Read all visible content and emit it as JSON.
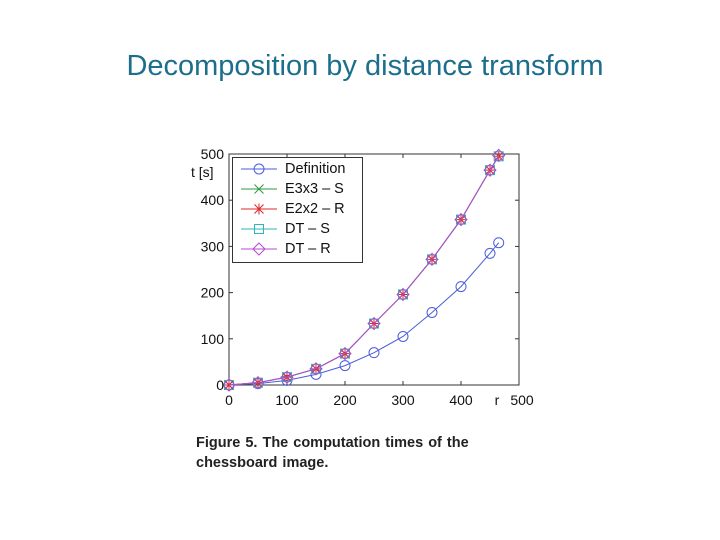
{
  "slide": {
    "title": "Decomposition by distance transform"
  },
  "figure": {
    "caption_line1": "Figure 5. The computation times of the",
    "caption_line2": "chessboard image."
  },
  "chart_data": {
    "type": "line",
    "ylabel": "t [s]",
    "xlabel": "r",
    "xlim": [
      0,
      500
    ],
    "ylim": [
      0,
      500
    ],
    "xticks": [
      0,
      100,
      200,
      300,
      400,
      500
    ],
    "yticks": [
      0,
      100,
      200,
      300,
      400,
      500
    ],
    "legend_position": "top-left",
    "grid": false,
    "series": [
      {
        "name": "Definition",
        "color": "#4a5cdc",
        "marker": "circle",
        "x": [
          0,
          50,
          100,
          150,
          200,
          250,
          300,
          350,
          400,
          450,
          465
        ],
        "y": [
          0,
          3,
          10,
          23,
          42,
          70,
          105,
          157,
          213,
          285,
          308
        ]
      },
      {
        "name": "E3x3 – S",
        "color": "#2e9a3c",
        "marker": "x",
        "x": [
          0,
          50,
          100,
          150,
          200,
          250,
          300,
          350,
          400,
          450,
          465
        ],
        "y": [
          0,
          5,
          17,
          35,
          68,
          133,
          196,
          272,
          358,
          465,
          495
        ]
      },
      {
        "name": "E2x2 – R",
        "color": "#e0242c",
        "marker": "star",
        "x": [
          0,
          50,
          100,
          150,
          200,
          250,
          300,
          350,
          400,
          450,
          465
        ],
        "y": [
          0,
          5,
          17,
          35,
          68,
          133,
          196,
          272,
          358,
          465,
          495
        ]
      },
      {
        "name": "DT – S",
        "color": "#2ab7b7",
        "marker": "square",
        "x": [
          0,
          50,
          100,
          150,
          200,
          250,
          300,
          350,
          400,
          450,
          465
        ],
        "y": [
          0,
          5,
          17,
          35,
          68,
          133,
          196,
          272,
          358,
          465,
          495
        ]
      },
      {
        "name": "DT – R",
        "color": "#b64ad0",
        "marker": "diamond",
        "x": [
          0,
          50,
          100,
          150,
          200,
          250,
          300,
          350,
          400,
          450,
          465
        ],
        "y": [
          0,
          5,
          17,
          35,
          68,
          133,
          196,
          272,
          358,
          465,
          497
        ]
      }
    ]
  }
}
